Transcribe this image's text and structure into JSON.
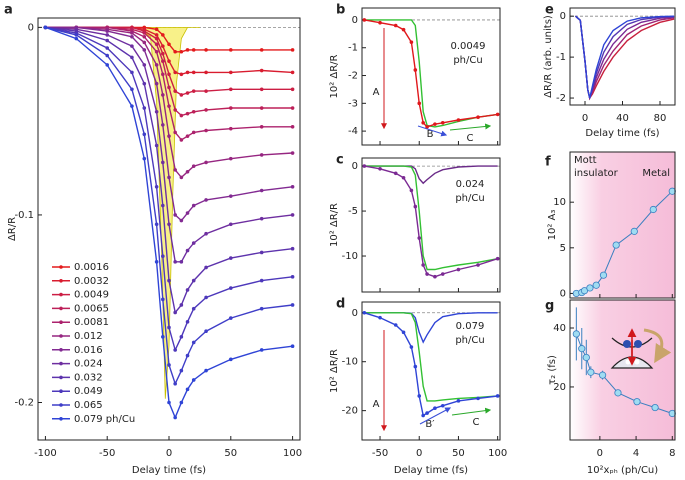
{
  "chart_data": [
    {
      "type": "line",
      "label": "a",
      "xlabel": "Delay time (fs)",
      "ylabel": "ΔR/R",
      "xlim": [
        -106,
        106
      ],
      "ylim": [
        -0.22,
        0.005
      ],
      "xticks": [
        -100,
        -50,
        0,
        50,
        100
      ],
      "yticks": [
        0,
        -0.1,
        -0.2
      ],
      "zero_line": true,
      "markers": true,
      "legend": "lower left",
      "pulse": {
        "color": "#f3e83a",
        "x": [
          -25,
          -15,
          -10,
          -6,
          -3,
          0,
          3,
          6,
          10,
          15,
          25
        ],
        "values": [
          0,
          -0.005,
          -0.04,
          -0.12,
          -0.198,
          -0.17,
          -0.09,
          -0.03,
          -0.006,
          0,
          0
        ]
      },
      "x": [
        -100,
        -75,
        -50,
        -30,
        -20,
        -10,
        -5,
        0,
        5,
        10,
        15,
        20,
        30,
        50,
        75,
        100
      ],
      "series": [
        {
          "name": "0.0016",
          "color": "#e41a1c",
          "values": [
            0,
            0,
            0,
            0,
            0,
            -0.001,
            -0.004,
            -0.009,
            -0.013,
            -0.013,
            -0.012,
            -0.012,
            -0.012,
            -0.012,
            -0.012,
            -0.012
          ]
        },
        {
          "name": "0.0032",
          "color": "#d91c2f",
          "values": [
            0,
            0,
            0,
            0,
            -0.001,
            -0.004,
            -0.01,
            -0.018,
            -0.024,
            -0.025,
            -0.024,
            -0.024,
            -0.024,
            -0.024,
            -0.023,
            -0.024
          ]
        },
        {
          "name": "0.0049",
          "color": "#cc1e44",
          "values": [
            0,
            0,
            0,
            0,
            -0.002,
            -0.006,
            -0.014,
            -0.025,
            -0.034,
            -0.036,
            -0.035,
            -0.034,
            -0.034,
            -0.033,
            -0.033,
            -0.033
          ]
        },
        {
          "name": "0.0065",
          "color": "#bd2059",
          "values": [
            0,
            0,
            0,
            -0.001,
            -0.003,
            -0.009,
            -0.018,
            -0.032,
            -0.044,
            -0.047,
            -0.046,
            -0.045,
            -0.044,
            -0.043,
            -0.043,
            -0.043
          ]
        },
        {
          "name": "0.0081",
          "color": "#ac226d",
          "values": [
            0,
            0,
            0,
            -0.002,
            -0.005,
            -0.013,
            -0.025,
            -0.042,
            -0.056,
            -0.06,
            -0.058,
            -0.056,
            -0.055,
            -0.054,
            -0.053,
            -0.053
          ]
        },
        {
          "name": "0.012",
          "color": "#962681",
          "values": [
            0,
            0,
            -0.001,
            -0.003,
            -0.008,
            -0.02,
            -0.036,
            -0.058,
            -0.076,
            -0.08,
            -0.077,
            -0.074,
            -0.072,
            -0.07,
            -0.068,
            -0.067
          ]
        },
        {
          "name": "0.016",
          "color": "#822a92",
          "values": [
            0,
            0,
            -0.002,
            -0.005,
            -0.012,
            -0.03,
            -0.052,
            -0.08,
            -0.1,
            -0.103,
            -0.099,
            -0.095,
            -0.092,
            -0.09,
            -0.087,
            -0.085
          ]
        },
        {
          "name": "0.024",
          "color": "#6e2ea0",
          "values": [
            0,
            -0.001,
            -0.004,
            -0.01,
            -0.02,
            -0.045,
            -0.072,
            -0.105,
            -0.125,
            -0.125,
            -0.119,
            -0.115,
            -0.11,
            -0.105,
            -0.102,
            -0.1
          ]
        },
        {
          "name": "0.032",
          "color": "#5d33ad",
          "values": [
            0,
            -0.002,
            -0.007,
            -0.016,
            -0.03,
            -0.063,
            -0.095,
            -0.135,
            -0.152,
            -0.148,
            -0.14,
            -0.135,
            -0.128,
            -0.123,
            -0.12,
            -0.118
          ]
        },
        {
          "name": "0.049",
          "color": "#4d38bb",
          "values": [
            0,
            -0.003,
            -0.011,
            -0.024,
            -0.043,
            -0.085,
            -0.122,
            -0.16,
            -0.172,
            -0.165,
            -0.157,
            -0.15,
            -0.144,
            -0.139,
            -0.135,
            -0.133
          ]
        },
        {
          "name": "0.065",
          "color": "#3f3ec8",
          "values": [
            0,
            -0.004,
            -0.015,
            -0.033,
            -0.057,
            -0.105,
            -0.145,
            -0.18,
            -0.19,
            -0.183,
            -0.175,
            -0.168,
            -0.162,
            -0.155,
            -0.15,
            -0.148
          ]
        },
        {
          "name": "0.079 ph/Cu",
          "color": "#2f44d6",
          "values": [
            0,
            -0.006,
            -0.02,
            -0.042,
            -0.07,
            -0.125,
            -0.165,
            -0.2,
            -0.208,
            -0.2,
            -0.193,
            -0.188,
            -0.183,
            -0.177,
            -0.172,
            -0.17
          ]
        }
      ]
    },
    {
      "type": "line",
      "label": "b",
      "ylabel": "10² ΔR/R",
      "xlim": [
        -73,
        103
      ],
      "ylim": [
        -4.5,
        0.43
      ],
      "xticks": [
        -50,
        0,
        50,
        100
      ],
      "yticks": [
        0,
        -1,
        -2,
        -3,
        -4
      ],
      "zero_line": true,
      "annotations": [
        "0.0049",
        "ph/Cu",
        "A",
        "B",
        "C"
      ],
      "x": [
        -70,
        -50,
        -30,
        -20,
        -10,
        -5,
        0,
        5,
        10,
        20,
        30,
        50,
        75,
        100
      ],
      "series": [
        {
          "color": "#33c033",
          "values": [
            0,
            0,
            0,
            0,
            0,
            -0.2,
            -1.5,
            -3.3,
            -3.8,
            -3.85,
            -3.8,
            -3.65,
            -3.5,
            -3.4
          ]
        },
        {
          "color": "#e0181c",
          "markers": true,
          "values": [
            0,
            -0.1,
            -0.2,
            -0.35,
            -0.8,
            -1.8,
            -3.0,
            -3.7,
            -3.85,
            -3.75,
            -3.7,
            -3.6,
            -3.5,
            -3.4
          ]
        }
      ]
    },
    {
      "type": "line",
      "label": "c",
      "ylabel": "10² ΔR/R",
      "xlim": [
        -73,
        103
      ],
      "ylim": [
        -14,
        0.9
      ],
      "xticks": [
        -50,
        0,
        50,
        100
      ],
      "yticks": [
        0,
        -5,
        -10
      ],
      "zero_line": true,
      "annotations": [
        "0.024",
        "ph/Cu"
      ],
      "x": [
        -70,
        -50,
        -30,
        -20,
        -10,
        -5,
        0,
        5,
        10,
        20,
        30,
        50,
        75,
        100
      ],
      "series": [
        {
          "color": "#6a2a88",
          "values": [
            0,
            0,
            0,
            0,
            0,
            -0.3,
            -1.4,
            -1.9,
            -1.5,
            -0.8,
            -0.4,
            -0.1,
            0,
            0
          ]
        },
        {
          "color": "#33c033",
          "values": [
            0,
            0,
            0,
            0,
            -0.1,
            -1,
            -5,
            -10,
            -11.5,
            -11.5,
            -11.3,
            -11,
            -10.7,
            -10.3
          ]
        },
        {
          "color": "#7b2a93",
          "markers": true,
          "values": [
            0,
            -0.3,
            -0.8,
            -1.3,
            -2.7,
            -4.5,
            -8,
            -11,
            -12,
            -12.3,
            -12,
            -11.5,
            -11,
            -10.3
          ]
        }
      ]
    },
    {
      "type": "line",
      "label": "d",
      "xlabel": "Delay time (fs)",
      "ylabel": "10² ΔR/R",
      "xlim": [
        -73,
        103
      ],
      "ylim": [
        -26,
        2.2
      ],
      "xticks": [
        -50,
        0,
        50,
        100
      ],
      "yticks": [
        0,
        -10,
        -20
      ],
      "zero_line": true,
      "annotations": [
        "0.079",
        "ph/Cu",
        "A",
        "B′",
        "C"
      ],
      "x": [
        -70,
        -50,
        -30,
        -20,
        -10,
        -5,
        0,
        5,
        10,
        20,
        30,
        50,
        75,
        100
      ],
      "series": [
        {
          "color": "#2f44d6",
          "values": [
            0,
            0,
            0,
            0,
            -0.1,
            -1,
            -4,
            -6,
            -4.5,
            -2,
            -0.8,
            -0.2,
            0,
            0
          ]
        },
        {
          "color": "#33c033",
          "values": [
            0,
            0,
            0,
            0,
            -0.2,
            -2,
            -8,
            -15,
            -18,
            -18,
            -17.8,
            -17.5,
            -17.3,
            -17
          ]
        },
        {
          "color": "#2f44d6",
          "markers": true,
          "values": [
            0,
            -1,
            -2.5,
            -4,
            -7,
            -11,
            -17,
            -21,
            -20.5,
            -19.5,
            -19,
            -18,
            -17.5,
            -17
          ]
        }
      ]
    },
    {
      "type": "line",
      "label": "e",
      "xlabel": "Delay time (fs)",
      "ylabel": "ΔR/R (arb. units)",
      "xlim": [
        -16,
        96
      ],
      "ylim": [
        -2.17,
        0.2
      ],
      "xticks": [
        0,
        40,
        80
      ],
      "yticks": [
        0,
        -1,
        -2
      ],
      "zero_line": true,
      "x": [
        -10,
        -5,
        0,
        3,
        5,
        8,
        12,
        20,
        30,
        45,
        60,
        80,
        95
      ],
      "series": [
        {
          "color": "#c8203d",
          "values": [
            0,
            -0.1,
            -1.1,
            -1.8,
            -2,
            -1.9,
            -1.7,
            -1.35,
            -1.0,
            -0.6,
            -0.35,
            -0.15,
            -0.07
          ]
        },
        {
          "color": "#a02474",
          "values": [
            0,
            -0.1,
            -1.1,
            -1.8,
            -2,
            -1.85,
            -1.6,
            -1.2,
            -0.85,
            -0.45,
            -0.24,
            -0.09,
            -0.04
          ]
        },
        {
          "color": "#7a2a95",
          "values": [
            0,
            -0.1,
            -1.1,
            -1.8,
            -2,
            -1.8,
            -1.5,
            -1.05,
            -0.68,
            -0.32,
            -0.15,
            -0.05,
            -0.02
          ]
        },
        {
          "color": "#5436b2",
          "values": [
            0,
            -0.1,
            -1.1,
            -1.8,
            -2,
            -1.75,
            -1.4,
            -0.88,
            -0.5,
            -0.2,
            -0.08,
            -0.02,
            -0.01
          ]
        },
        {
          "color": "#2e44d6",
          "values": [
            0,
            -0.1,
            -1.1,
            -1.8,
            -2,
            -1.7,
            -1.3,
            -0.7,
            -0.35,
            -0.12,
            -0.04,
            -0.01,
            0
          ]
        }
      ]
    },
    {
      "type": "scatter",
      "label": "f",
      "ylabel": "10² A₃",
      "xlim": [
        -3.3,
        8.3
      ],
      "ylim": [
        -0.5,
        15.5
      ],
      "xticks": [
        0,
        4,
        8
      ],
      "yticks": [
        0,
        5,
        10
      ],
      "annotations": [
        "Mott",
        "insulator",
        "Metal"
      ],
      "x": [
        -2.6,
        -2.0,
        -1.7,
        -1.1,
        -0.4,
        0.4,
        1.8,
        3.8,
        5.9,
        8.0
      ],
      "series": [
        {
          "color": "#3a7fc0",
          "values": [
            0,
            0.1,
            0.3,
            0.6,
            0.9,
            2,
            5.3,
            6.8,
            9.2,
            11.2
          ]
        }
      ]
    },
    {
      "type": "scatter",
      "label": "g",
      "xlabel": "10²xₚₕ (ph/Cu)",
      "ylabel": "τ₂ (fs)",
      "xlim": [
        -3.3,
        8.3
      ],
      "ylim": [
        2,
        49.5
      ],
      "xticks": [
        0,
        4,
        8
      ],
      "yticks": [
        20,
        40
      ],
      "x": [
        -2.6,
        -2.0,
        -1.5,
        -1.0,
        0.3,
        2.0,
        4.1,
        6.1,
        8.0
      ],
      "series": [
        {
          "color": "#3a7fc0",
          "values": [
            38,
            33,
            30,
            25,
            24,
            18,
            15,
            13,
            11
          ],
          "errors": [
            9,
            7,
            6,
            2,
            1.5,
            null,
            null,
            null,
            null
          ]
        }
      ]
    }
  ]
}
